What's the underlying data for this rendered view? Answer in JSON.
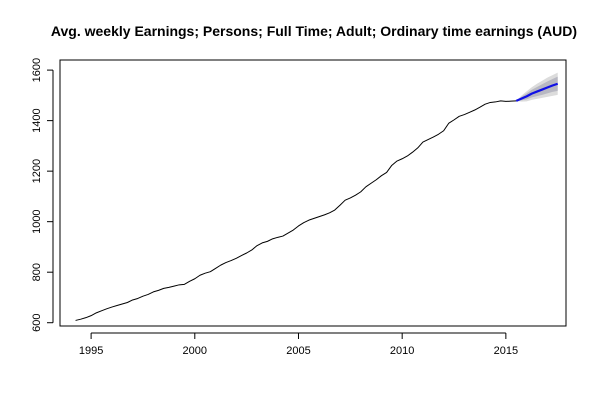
{
  "chart_data": {
    "type": "line",
    "title": "Avg. weekly Earnings; Persons; Full Time; Adult; Ordinary time earnings (AUD)",
    "xlabel": "",
    "ylabel": "",
    "xlim": [
      1993.5,
      2017.9
    ],
    "ylim": [
      587,
      1640
    ],
    "x_ticks": [
      1995,
      2000,
      2005,
      2010,
      2015
    ],
    "y_ticks": [
      600,
      800,
      1000,
      1200,
      1400,
      1600
    ],
    "grid": false,
    "series": [
      {
        "name": "observed",
        "color": "#000000",
        "x": [
          1994.25,
          1994.5,
          1994.75,
          1995.0,
          1995.25,
          1995.5,
          1995.75,
          1996.0,
          1996.25,
          1996.5,
          1996.75,
          1997.0,
          1997.25,
          1997.5,
          1997.75,
          1998.0,
          1998.25,
          1998.5,
          1998.75,
          1999.0,
          1999.25,
          1999.5,
          1999.75,
          2000.0,
          2000.25,
          2000.5,
          2000.75,
          2001.0,
          2001.25,
          2001.5,
          2001.75,
          2002.0,
          2002.25,
          2002.5,
          2002.75,
          2003.0,
          2003.25,
          2003.5,
          2003.75,
          2004.0,
          2004.25,
          2004.5,
          2004.75,
          2005.0,
          2005.25,
          2005.5,
          2005.75,
          2006.0,
          2006.25,
          2006.5,
          2006.75,
          2007.0,
          2007.25,
          2007.5,
          2007.75,
          2008.0,
          2008.25,
          2008.5,
          2008.75,
          2009.0,
          2009.25,
          2009.5,
          2009.75,
          2010.0,
          2010.25,
          2010.5,
          2010.75,
          2011.0,
          2011.25,
          2011.5,
          2011.75,
          2012.0,
          2012.25,
          2012.5,
          2012.75,
          2013.0,
          2013.25,
          2013.5,
          2013.75,
          2014.0,
          2014.25,
          2014.5,
          2014.75,
          2015.0,
          2015.25,
          2015.5
        ],
        "values": [
          609,
          614,
          620,
          628,
          639,
          647,
          655,
          662,
          668,
          674,
          680,
          690,
          696,
          705,
          712,
          722,
          728,
          736,
          740,
          745,
          750,
          752,
          764,
          774,
          788,
          796,
          802,
          815,
          828,
          838,
          846,
          855,
          866,
          876,
          888,
          905,
          916,
          922,
          932,
          938,
          943,
          955,
          967,
          983,
          996,
          1006,
          1013,
          1020,
          1027,
          1035,
          1046,
          1065,
          1085,
          1094,
          1105,
          1118,
          1138,
          1152,
          1166,
          1182,
          1195,
          1223,
          1240,
          1249,
          1260,
          1275,
          1292,
          1315,
          1325,
          1335,
          1346,
          1360,
          1390,
          1403,
          1417,
          1424,
          1433,
          1442,
          1453,
          1465,
          1472,
          1474,
          1478,
          1476,
          1477,
          1478
        ]
      },
      {
        "name": "forecast",
        "color": "#1010e6",
        "x": [
          2015.5,
          2015.75,
          2016.0,
          2016.25,
          2016.5,
          2016.75,
          2017.0,
          2017.25,
          2017.5
        ],
        "values": [
          1478,
          1487,
          1496,
          1507,
          1515,
          1523,
          1531,
          1539,
          1546
        ]
      }
    ],
    "bands": [
      {
        "name": "95% interval",
        "color": "#dcdcdc",
        "x": [
          2015.5,
          2015.75,
          2016.0,
          2016.25,
          2016.5,
          2016.75,
          2017.0,
          2017.25,
          2017.5
        ],
        "lower": [
          1478,
          1475,
          1476,
          1482,
          1486,
          1490,
          1494,
          1498,
          1502
        ],
        "upper": [
          1478,
          1499,
          1516,
          1532,
          1546,
          1558,
          1570,
          1580,
          1590
        ]
      },
      {
        "name": "80% interval",
        "color": "#b8b8c2",
        "x": [
          2015.5,
          2015.75,
          2016.0,
          2016.25,
          2016.5,
          2016.75,
          2017.0,
          2017.25,
          2017.5
        ],
        "lower": [
          1478,
          1480,
          1484,
          1492,
          1497,
          1502,
          1508,
          1514,
          1518
        ],
        "upper": [
          1478,
          1494,
          1508,
          1522,
          1533,
          1544,
          1555,
          1565,
          1574
        ]
      }
    ]
  }
}
